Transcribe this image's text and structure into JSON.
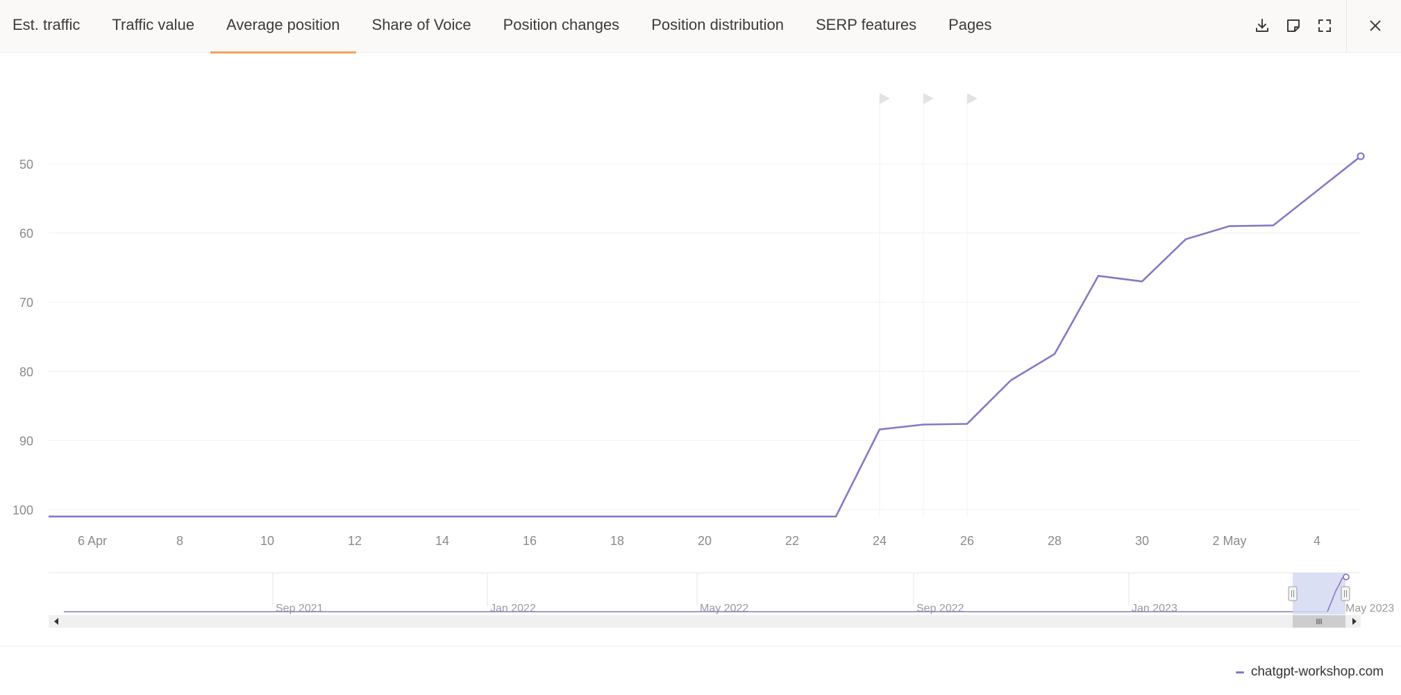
{
  "tabs": [
    {
      "label": "Est. traffic",
      "active": false
    },
    {
      "label": "Traffic value",
      "active": false
    },
    {
      "label": "Average position",
      "active": true
    },
    {
      "label": "Share of Voice",
      "active": false
    },
    {
      "label": "Position changes",
      "active": false
    },
    {
      "label": "Position distribution",
      "active": false
    },
    {
      "label": "SERP features",
      "active": false
    },
    {
      "label": "Pages",
      "active": false
    }
  ],
  "toolbar": {
    "icons": [
      "download-icon",
      "note-icon",
      "fullscreen-icon",
      "close-icon"
    ]
  },
  "colors": {
    "series": "#8677c4",
    "active_tab": "#f5a05a",
    "navigator_mask": "#d4d9f2"
  },
  "chart_data": {
    "type": "line",
    "ylabel": "",
    "xlabel": "",
    "y_reversed": true,
    "ylim": [
      101,
      40
    ],
    "y_ticks": [
      50,
      60,
      70,
      80,
      90,
      100
    ],
    "x_ticks": [
      {
        "day": 6,
        "label": "6 Apr"
      },
      {
        "day": 8,
        "label": "8"
      },
      {
        "day": 10,
        "label": "10"
      },
      {
        "day": 12,
        "label": "12"
      },
      {
        "day": 14,
        "label": "14"
      },
      {
        "day": 16,
        "label": "16"
      },
      {
        "day": 18,
        "label": "18"
      },
      {
        "day": 20,
        "label": "20"
      },
      {
        "day": 22,
        "label": "22"
      },
      {
        "day": 24,
        "label": "24"
      },
      {
        "day": 26,
        "label": "26"
      },
      {
        "day": 28,
        "label": "28"
      },
      {
        "day": 30,
        "label": "30"
      },
      {
        "day": 32,
        "label": "2 May"
      },
      {
        "day": 34,
        "label": "4"
      }
    ],
    "x_range": [
      5,
      35
    ],
    "grid": true,
    "flags_days": [
      24,
      25,
      26
    ],
    "series": [
      {
        "name": "chatgpt-workshop.com",
        "x": [
          5,
          23,
          24,
          25,
          26,
          27,
          28,
          29,
          30,
          31,
          32,
          33,
          35
        ],
        "values": [
          101,
          101,
          88.4,
          87.7,
          87.6,
          81.3,
          77.5,
          66.2,
          67.0,
          60.9,
          59.0,
          58.9,
          48.9
        ]
      }
    ],
    "legend": {
      "position": "bottom-right",
      "entries": [
        "chatgpt-workshop.com"
      ]
    },
    "navigator": {
      "labels": [
        "Sep 2021",
        "Jan 2022",
        "May 2022",
        "Sep 2022",
        "Jan 2023",
        "May 2023"
      ],
      "selected_range": [
        "6 Apr 2023",
        "5 May 2023"
      ]
    }
  }
}
